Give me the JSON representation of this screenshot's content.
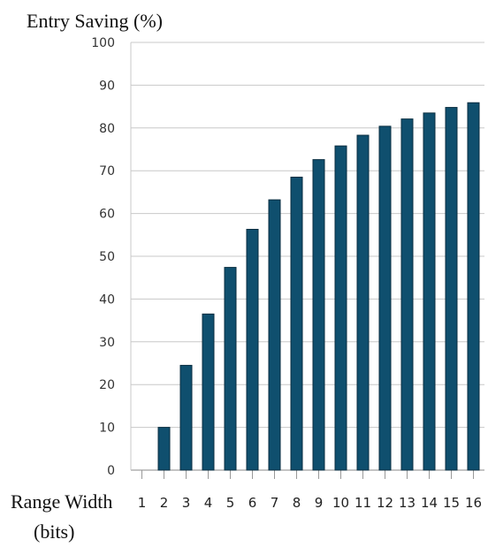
{
  "chart_data": {
    "type": "bar",
    "ylabel": "Entry Saving (%)",
    "xlabel": "Range Width",
    "xlabel_unit": "(bits)",
    "categories": [
      "1",
      "2",
      "3",
      "4",
      "5",
      "6",
      "7",
      "8",
      "9",
      "10",
      "11",
      "12",
      "13",
      "14",
      "15",
      "16"
    ],
    "values": [
      0,
      10,
      24.5,
      36.5,
      47.4,
      56.3,
      63.2,
      68.5,
      72.6,
      75.8,
      78.3,
      80.4,
      82.1,
      83.5,
      84.8,
      85.9
    ],
    "ylim": [
      0,
      100
    ],
    "yticks": [
      0,
      10,
      20,
      30,
      40,
      50,
      60,
      70,
      80,
      90,
      100
    ],
    "grid": true,
    "bar_color": "#0f4f6e"
  }
}
